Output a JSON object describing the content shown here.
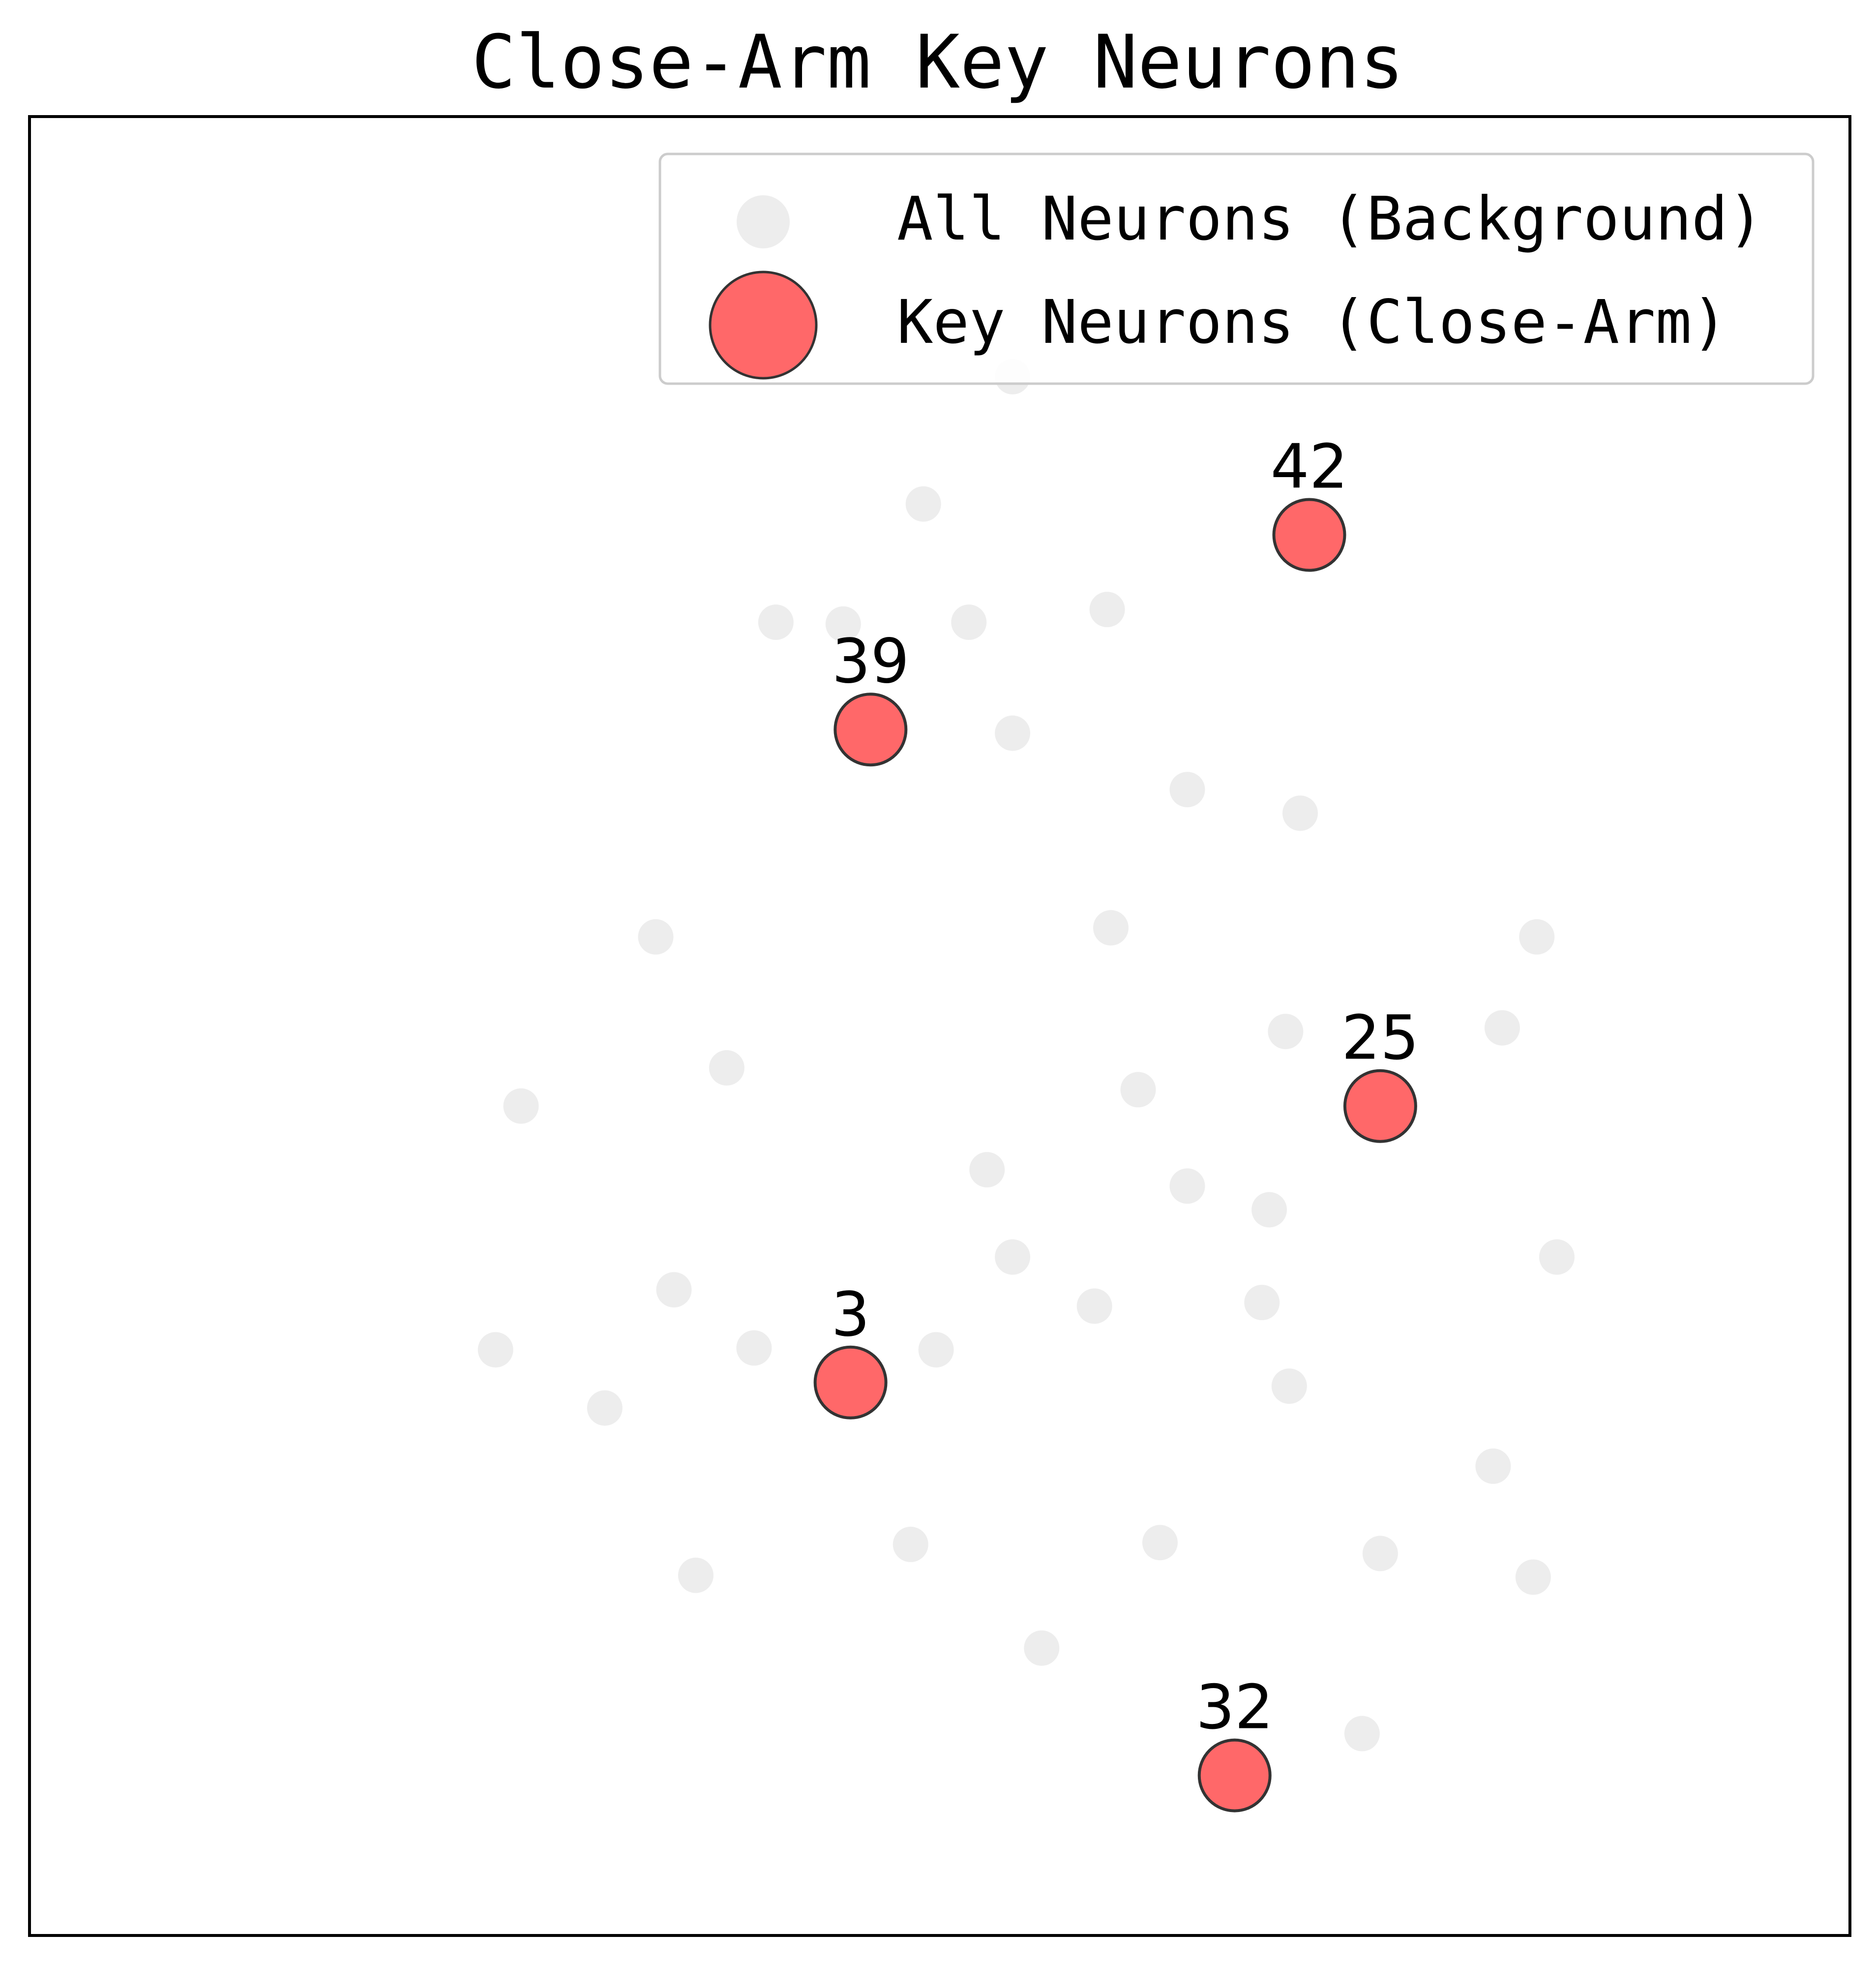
{
  "chart_data": {
    "type": "scatter",
    "title": "Close-Arm Key Neurons",
    "xlabel": "",
    "ylabel": "",
    "xlim": [
      0,
      100
    ],
    "ylim": [
      0,
      100
    ],
    "axes_visible": false,
    "grid": false,
    "legend_placement": "top-right",
    "series": [
      {
        "name": "All Neurons (Background)",
        "color": "#e6e6e6",
        "x": [
          54.0,
          49.1,
          41.0,
          44.7,
          51.6,
          59.2,
          54.0,
          63.6,
          69.8,
          34.4,
          59.4,
          82.8,
          69.0,
          80.9,
          38.3,
          60.9,
          27.0,
          52.6,
          63.6,
          68.1,
          54.0,
          83.9,
          35.4,
          58.5,
          67.7,
          25.6,
          39.8,
          49.8,
          31.6,
          69.2,
          80.4,
          48.4,
          36.6,
          62.1,
          74.2,
          82.6,
          55.6,
          73.2
        ],
        "y": [
          85.7,
          78.7,
          72.2,
          72.1,
          72.2,
          72.9,
          66.1,
          63.0,
          61.7,
          54.9,
          55.4,
          54.9,
          49.7,
          49.9,
          47.7,
          46.5,
          45.6,
          42.1,
          41.2,
          39.9,
          37.3,
          37.3,
          35.5,
          34.6,
          34.8,
          32.2,
          32.3,
          32.2,
          29.0,
          30.2,
          25.8,
          21.5,
          19.8,
          21.6,
          21.0,
          19.7,
          15.8,
          11.1
        ],
        "size": "small",
        "opacity": 0.7
      },
      {
        "name": "Key Neurons (Close-Arm)",
        "color": "#ff4d4f",
        "edge_color": "#333333",
        "size": "large",
        "opacity": 0.85,
        "points": [
          {
            "id": "42",
            "x": 70.3,
            "y": 77.0
          },
          {
            "id": "39",
            "x": 46.2,
            "y": 66.3
          },
          {
            "id": "25",
            "x": 74.2,
            "y": 45.6
          },
          {
            "id": "3",
            "x": 45.1,
            "y": 30.4
          },
          {
            "id": "32",
            "x": 66.2,
            "y": 8.8
          }
        ]
      }
    ]
  }
}
